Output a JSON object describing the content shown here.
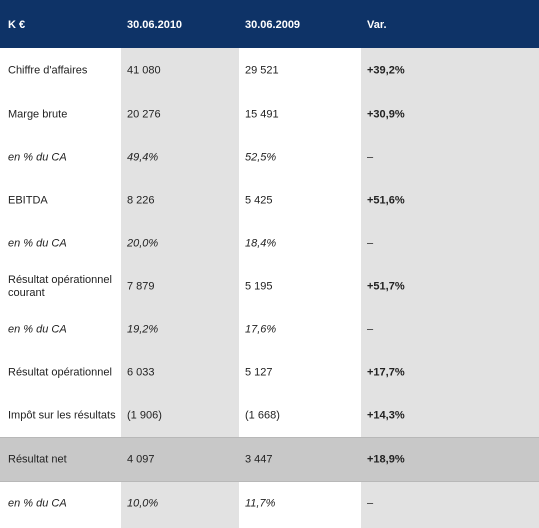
{
  "header": {
    "col0": "K €",
    "col1": "30.06.2010",
    "col2": "30.06.2009",
    "col3": "Var."
  },
  "rows": [
    {
      "label": "Chiffre d'affaires",
      "v2010": "41 080",
      "v2009": "29 521",
      "var": "+39,2%"
    },
    {
      "label": "Marge brute",
      "v2010": "20 276",
      "v2009": "15 491",
      "var": "+30,9%"
    },
    {
      "label": "en % du CA",
      "v2010": "49,4%",
      "v2009": "52,5%",
      "var": "–"
    },
    {
      "label": "EBITDA",
      "v2010": "8 226",
      "v2009": "5 425",
      "var": "+51,6%"
    },
    {
      "label": "en % du CA",
      "v2010": "20,0%",
      "v2009": "18,4%",
      "var": "–"
    },
    {
      "label_line1": "Résultat opérationnel",
      "label_line2": "courant",
      "v2010": "7 879",
      "v2009": "5 195",
      "var": "+51,7%"
    },
    {
      "label": "en % du CA",
      "v2010": "19,2%",
      "v2009": "17,6%",
      "var": "–"
    },
    {
      "label": "Résultat opérationnel",
      "v2010": "6 033",
      "v2009": "5 127",
      "var": "+17,7%"
    },
    {
      "label": "Impôt sur les résultats",
      "v2010": "(1 906)",
      "v2009": "(1 668)",
      "var": "+14,3%"
    },
    {
      "label": "Résultat net",
      "v2010": "4 097",
      "v2009": "3 447",
      "var": "+18,9%"
    },
    {
      "label": "en % du CA",
      "v2010": "10,0%",
      "v2009": "11,7%",
      "var": "–"
    }
  ]
}
